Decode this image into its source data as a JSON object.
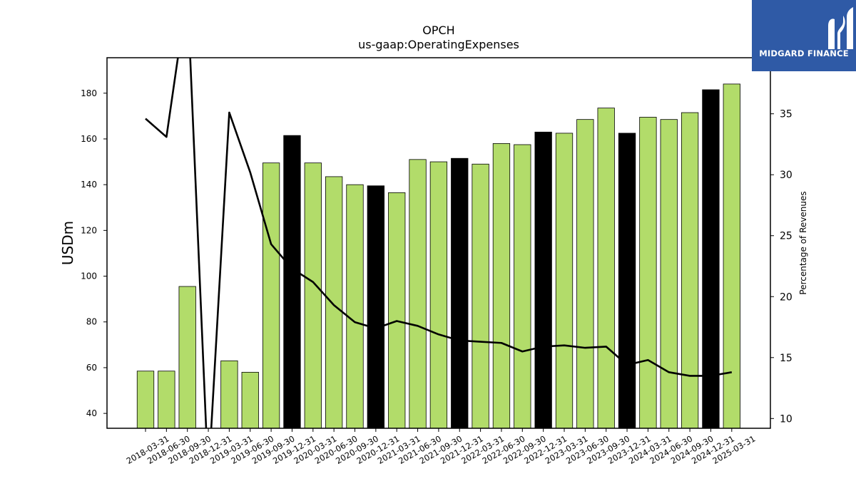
{
  "chart_data": {
    "type": "bar",
    "title": "OPCH",
    "subtitle": "us-gaap:OperatingExpenses",
    "xlabel": "",
    "ylabel": "USDm",
    "y2label": "Percentage of Revenues",
    "ylim": [
      33.5,
      195.5
    ],
    "y2lim": [
      9.2,
      39.6
    ],
    "yticks": [
      40,
      60,
      80,
      100,
      120,
      140,
      160,
      180
    ],
    "y2ticks": [
      10,
      15,
      20,
      25,
      30,
      35
    ],
    "grid": false,
    "categories": [
      "2018-03-31",
      "2018-06-30",
      "2018-09-30",
      "2018-12-31",
      "2019-03-31",
      "2019-06-30",
      "2019-09-30",
      "2019-12-31",
      "2020-03-31",
      "2020-06-30",
      "2020-09-30",
      "2020-12-31",
      "2021-03-31",
      "2021-06-30",
      "2021-09-30",
      "2021-12-31",
      "2022-03-31",
      "2022-06-30",
      "2022-09-30",
      "2022-12-31",
      "2023-03-31",
      "2023-06-30",
      "2023-09-30",
      "2023-12-31",
      "2024-03-31",
      "2024-06-30",
      "2024-09-30",
      "2024-12-31",
      "2025-03-31"
    ],
    "series": [
      {
        "type": "bar",
        "axis": "left",
        "values": [
          58.5,
          58.5,
          95.5,
          null,
          63,
          58,
          149.5,
          161.5,
          149.5,
          143.5,
          140,
          139.5,
          136.5,
          151,
          150,
          151.5,
          149,
          158,
          157.5,
          163,
          162.5,
          168.5,
          173.5,
          162.5,
          169.5,
          168.5,
          171.5,
          181.5,
          184
        ],
        "colors": [
          "#b2dc6a",
          "#b2dc6a",
          "#b2dc6a",
          "#b2dc6a",
          "#b2dc6a",
          "#b2dc6a",
          "#b2dc6a",
          "#000000",
          "#b2dc6a",
          "#b2dc6a",
          "#b2dc6a",
          "#000000",
          "#b2dc6a",
          "#b2dc6a",
          "#b2dc6a",
          "#000000",
          "#b2dc6a",
          "#b2dc6a",
          "#b2dc6a",
          "#000000",
          "#b2dc6a",
          "#b2dc6a",
          "#b2dc6a",
          "#000000",
          "#b2dc6a",
          "#b2dc6a",
          "#b2dc6a",
          "#000000",
          "#b2dc6a"
        ]
      },
      {
        "type": "line",
        "axis": "right",
        "color": "#000000",
        "values": [
          34.6,
          33.1,
          45.0,
          5.0,
          35.1,
          30.2,
          24.3,
          22.3,
          21.2,
          19.3,
          17.9,
          17.4,
          18.0,
          17.6,
          16.9,
          16.4,
          16.3,
          16.2,
          15.5,
          15.9,
          16.0,
          15.8,
          15.9,
          14.4,
          14.8,
          13.8,
          13.5,
          13.5,
          13.8
        ]
      }
    ]
  },
  "logo": {
    "text": "MIDGARD FINANCE"
  }
}
